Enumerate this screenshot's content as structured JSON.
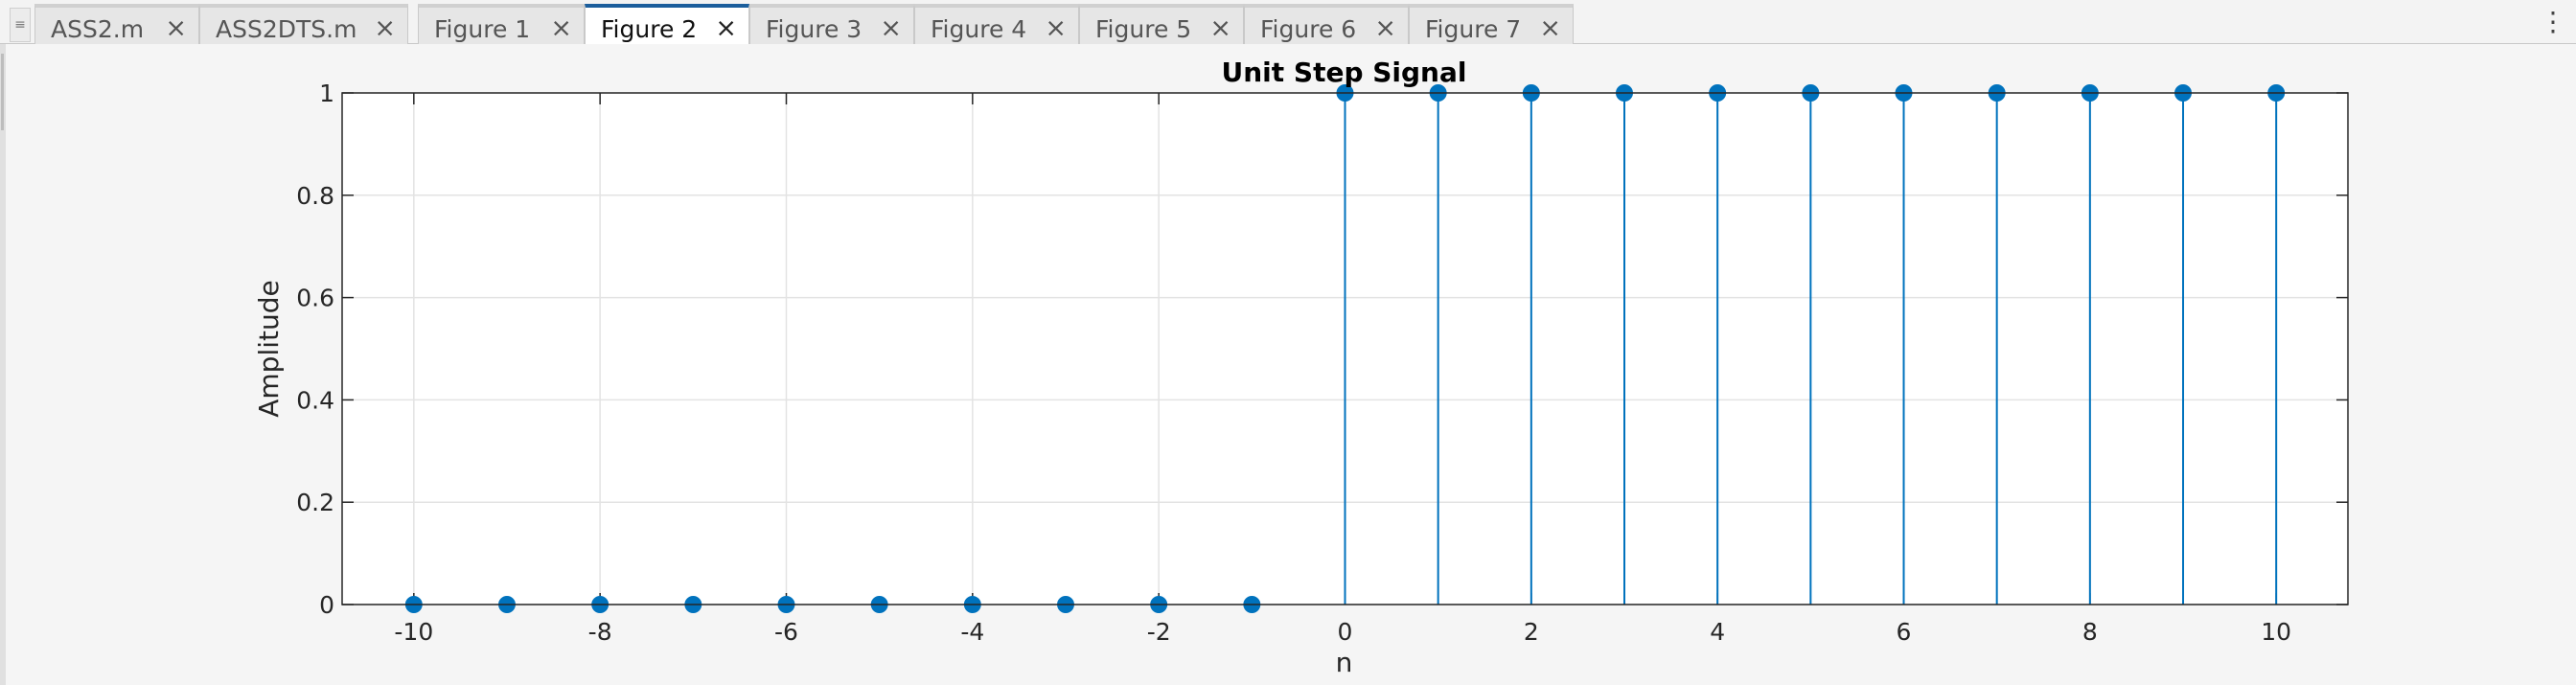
{
  "tabs": [
    {
      "label": "ASS2.m",
      "active": false
    },
    {
      "label": "ASS2DTS.m",
      "active": false
    },
    {
      "label": "Figure 1",
      "active": false
    },
    {
      "label": "Figure 2",
      "active": true
    },
    {
      "label": "Figure 3",
      "active": false
    },
    {
      "label": "Figure 4",
      "active": false
    },
    {
      "label": "Figure 5",
      "active": false
    },
    {
      "label": "Figure 6",
      "active": false
    },
    {
      "label": "Figure 7",
      "active": false
    }
  ],
  "tab_close_glyph": "×",
  "menu_glyph": "⋮",
  "grip_glyph": "≡",
  "colors": {
    "stem": "#0072BD",
    "grid": "#e3e3e3",
    "axis": "#262626",
    "accent": "#1b5e9c"
  },
  "chart_data": {
    "type": "stem",
    "title": "Unit Step Signal",
    "xlabel": "n",
    "ylabel": "Amplitude",
    "x": [
      -10,
      -9,
      -8,
      -7,
      -6,
      -5,
      -4,
      -3,
      -2,
      -1,
      0,
      1,
      2,
      3,
      4,
      5,
      6,
      7,
      8,
      9,
      10
    ],
    "y": [
      0,
      0,
      0,
      0,
      0,
      0,
      0,
      0,
      0,
      0,
      1,
      1,
      1,
      1,
      1,
      1,
      1,
      1,
      1,
      1,
      1
    ],
    "xlim": [
      -10.77,
      10.77
    ],
    "ylim": [
      0,
      1
    ],
    "xticks": [
      -10,
      -8,
      -6,
      -4,
      -2,
      0,
      2,
      4,
      6,
      8,
      10
    ],
    "xtick_labels": [
      "-10",
      "-8",
      "-6",
      "-4",
      "-2",
      "0",
      "2",
      "4",
      "6",
      "8",
      "10"
    ],
    "yticks": [
      0,
      0.2,
      0.4,
      0.6,
      0.8,
      1
    ],
    "ytick_labels": [
      "0",
      "0.2",
      "0.4",
      "0.6",
      "0.8",
      "1"
    ],
    "grid": true
  }
}
